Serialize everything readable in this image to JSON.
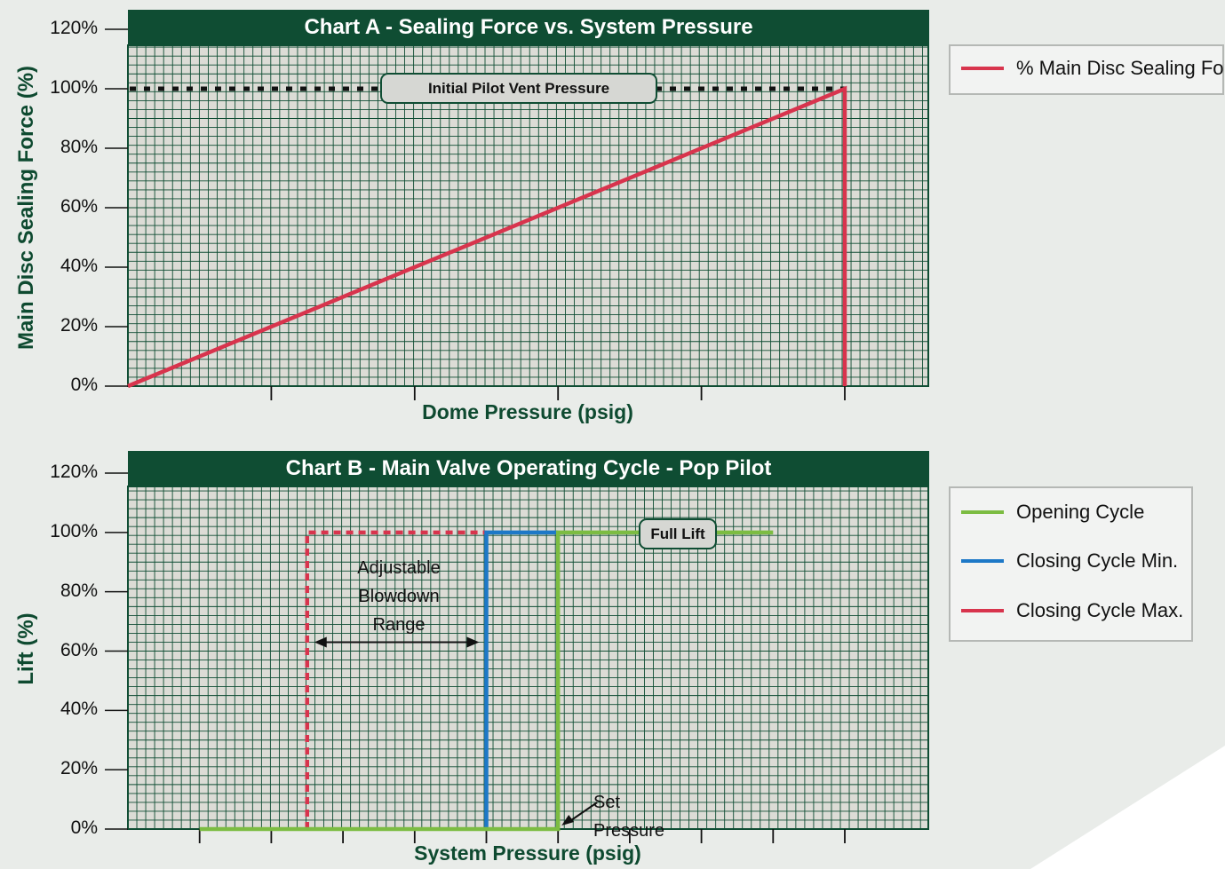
{
  "theme": {
    "grid_bg": "#dcdcd6",
    "grid_line": "#0f4d33",
    "frame": "#0f4d33",
    "header": "#0f4d33",
    "red": "#d8344d",
    "green": "#7cbc42",
    "blue": "#1d78c7"
  },
  "chart_a": {
    "title": "Chart A - Sealing Force vs. System Pressure",
    "ylabel": "Main Disc Sealing Force (%)",
    "xlabel": "Dome Pressure (psig)",
    "yticks": [
      "0%",
      "20%",
      "40%",
      "60%",
      "80%",
      "100%",
      "120%"
    ],
    "note": "Initial Pilot Vent Pressure",
    "legend": [
      {
        "label": "% Main Disc Sealing Force",
        "color": "#d8344d"
      }
    ]
  },
  "chart_b": {
    "title": "Chart B - Main Valve Operating Cycle - Pop Pilot",
    "ylabel": "Lift (%)",
    "xlabel": "System Pressure (psig)",
    "yticks": [
      "0%",
      "20%",
      "40%",
      "60%",
      "80%",
      "100%",
      "120%"
    ],
    "note": "Full Lift",
    "annotation_lines": [
      "Adjustable",
      "Blowdown",
      "Range"
    ],
    "set_pressure_label": "Set Pressure",
    "legend": [
      {
        "label": "Opening Cycle",
        "color": "#7cbc42"
      },
      {
        "label": "Closing Cycle Min.",
        "color": "#1d78c7"
      },
      {
        "label": "Closing Cycle Max.",
        "color": "#d8344d"
      }
    ]
  },
  "chart_data": [
    {
      "type": "line",
      "title": "Chart A - Sealing Force vs. System Pressure",
      "xlabel": "Dome Pressure (psig)",
      "ylabel": "Main Disc Sealing Force (%)",
      "ylim": [
        0,
        120
      ],
      "x_ticks_count": 5,
      "grid": true,
      "legend_position": "right",
      "series": [
        {
          "name": "% Main Disc Sealing Force",
          "color": "#d8344d",
          "style": "solid",
          "x": [
            0,
            5,
            5
          ],
          "y": [
            0,
            100,
            0
          ]
        }
      ],
      "reference_lines": [
        {
          "label": "Initial Pilot Vent Pressure",
          "y": 100,
          "style": "dotted"
        }
      ]
    },
    {
      "type": "line",
      "title": "Chart B - Main Valve Operating Cycle - Pop Pilot",
      "xlabel": "System Pressure (psig)",
      "ylabel": "Lift (%)",
      "ylim": [
        0,
        120
      ],
      "x_ticks_count": 9,
      "grid": true,
      "legend_position": "right",
      "series": [
        {
          "name": "Opening Cycle",
          "color": "#7cbc42",
          "style": "solid",
          "x": [
            1,
            6,
            6,
            9
          ],
          "y": [
            0,
            0,
            100,
            100
          ]
        },
        {
          "name": "Closing Cycle Min.",
          "color": "#1d78c7",
          "style": "solid",
          "x": [
            5,
            5,
            6
          ],
          "y": [
            0,
            100,
            100
          ]
        },
        {
          "name": "Closing Cycle Max.",
          "color": "#d8344d",
          "style": "dashed",
          "x": [
            2.5,
            2.5,
            5
          ],
          "y": [
            0,
            100,
            100
          ]
        }
      ],
      "annotations": [
        "Adjustable Blowdown Range",
        "Full Lift",
        "Set Pressure"
      ]
    }
  ]
}
